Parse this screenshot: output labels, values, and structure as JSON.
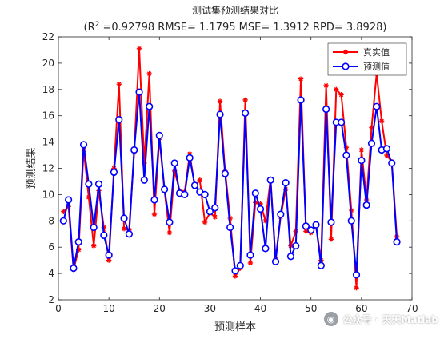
{
  "chart_data": {
    "type": "line",
    "title": "测试集预测结果对比",
    "subtitle_prefix": "(R",
    "subtitle_sup": "2",
    "subtitle_rest": " =0.92798 RMSE= 1.1795 MSE= 1.3912 RPD= 3.8928)",
    "xlabel": "预测样本",
    "ylabel": "预测结果",
    "xlim": [
      0,
      70
    ],
    "ylim": [
      2,
      22
    ],
    "xticks": [
      0,
      10,
      20,
      30,
      40,
      50,
      60,
      70
    ],
    "yticks": [
      2,
      4,
      6,
      8,
      10,
      12,
      14,
      16,
      18,
      20,
      22
    ],
    "grid": false,
    "legend_position": "top-right",
    "x": [
      1,
      2,
      3,
      4,
      5,
      6,
      7,
      8,
      9,
      10,
      11,
      12,
      13,
      14,
      15,
      16,
      17,
      18,
      19,
      20,
      21,
      22,
      23,
      24,
      25,
      26,
      27,
      28,
      29,
      30,
      31,
      32,
      33,
      34,
      35,
      36,
      37,
      38,
      39,
      40,
      41,
      42,
      43,
      44,
      45,
      46,
      47,
      48,
      49,
      50,
      51,
      52,
      53,
      54,
      55,
      56,
      57,
      58,
      59,
      60,
      61,
      62,
      63,
      64,
      65,
      66,
      67
    ],
    "series": [
      {
        "name": "真实值",
        "color": "#ff0000",
        "marker": "asterisk",
        "values": [
          8.7,
          9.1,
          4.3,
          5.8,
          13.4,
          9.8,
          6.1,
          10.3,
          7.5,
          5.0,
          12.0,
          18.4,
          7.4,
          7.3,
          13.2,
          21.1,
          12.4,
          19.2,
          8.5,
          14.3,
          10.3,
          7.1,
          11.8,
          10.3,
          10.2,
          13.1,
          10.6,
          11.1,
          7.9,
          8.6,
          8.3,
          17.1,
          11.8,
          8.2,
          3.8,
          4.4,
          17.2,
          4.8,
          9.4,
          9.3,
          8.0,
          11.2,
          5.1,
          8.3,
          10.4,
          6.1,
          7.2,
          18.8,
          7.2,
          7.1,
          7.6,
          5.0,
          18.3,
          6.6,
          18.0,
          17.6,
          13.6,
          8.8,
          2.9,
          13.4,
          9.6,
          15.1,
          19.2,
          15.6,
          13.0,
          12.5,
          6.8
        ]
      },
      {
        "name": "预测值",
        "color": "#0000ff",
        "marker": "circle",
        "values": [
          8.0,
          9.6,
          4.4,
          6.4,
          13.8,
          10.8,
          7.5,
          10.8,
          6.9,
          5.4,
          11.7,
          15.7,
          8.2,
          7.0,
          13.4,
          17.8,
          11.1,
          16.7,
          9.6,
          14.5,
          10.4,
          7.9,
          12.4,
          10.1,
          10.0,
          12.8,
          10.7,
          10.2,
          10.0,
          8.7,
          9.0,
          16.1,
          11.6,
          7.5,
          4.2,
          4.6,
          16.2,
          5.4,
          10.1,
          8.9,
          5.9,
          11.1,
          4.9,
          8.5,
          10.9,
          5.3,
          6.1,
          17.2,
          7.6,
          7.3,
          7.7,
          4.6,
          16.5,
          7.9,
          15.5,
          15.5,
          13.0,
          8.0,
          3.9,
          12.6,
          9.2,
          13.9,
          16.7,
          13.4,
          13.5,
          12.4,
          6.4
        ]
      }
    ]
  },
  "watermark": {
    "icon": "wechat-icon",
    "text": "公众号 · 天天Matlab"
  }
}
